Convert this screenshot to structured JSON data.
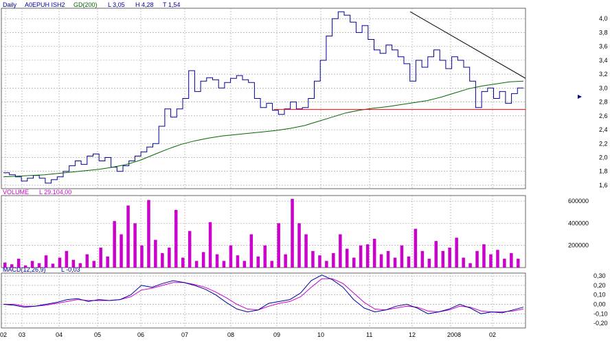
{
  "header": {
    "period": "Daily",
    "symbol": "A0EPUH ISH2",
    "indicator": "GD(200)",
    "low_label": "L 3,05",
    "high_label": "H 4,28",
    "t_label": "T 1,54"
  },
  "volume_panel": {
    "label": "VOLUME",
    "value_label": "L 29.104,00"
  },
  "macd_panel": {
    "label": "MACD(12,26,9)",
    "value_label": "L -0,03"
  },
  "colors": {
    "price": "#000099",
    "ma": "#006600",
    "trend": "#000000",
    "support": "#ff0000",
    "volume": "#cc00cc",
    "macd": "#000099",
    "signal": "#cc00cc",
    "label_blue": "#000099",
    "label_pink": "#cc00cc",
    "grid": "#999999"
  },
  "chart_data": [
    {
      "type": "line",
      "name": "price",
      "x_month_ticks": [
        "02",
        "03",
        "04",
        "05",
        "06",
        "07",
        "08",
        "09",
        "10",
        "11",
        "12",
        "2008",
        "02"
      ],
      "y_ticks": [
        "4,0",
        "3,8",
        "3,6",
        "3,4",
        "3,2",
        "3,0",
        "2,8",
        "2,6",
        "2,4",
        "2,2",
        "2,0",
        "1,8",
        "1,6"
      ],
      "ylim": [
        1.55,
        4.15
      ],
      "grid": true,
      "series": [
        {
          "values": [
            1.78,
            1.75,
            1.72,
            1.66,
            1.7,
            1.74,
            1.7,
            1.63,
            1.68,
            1.72,
            1.8,
            1.88,
            1.95,
            1.9,
            2.02,
            2.05,
            1.95,
            2.0,
            1.86,
            1.8,
            1.88,
            1.95,
            2.02,
            2.08,
            2.15,
            2.2,
            2.45,
            2.7,
            2.58,
            2.7,
            2.85,
            3.25,
            2.95,
            3.1,
            3.15,
            3.12,
            3.0,
            3.08,
            3.14,
            3.18,
            3.12,
            3.08,
            2.85,
            2.72,
            2.78,
            2.68,
            2.62,
            2.7,
            2.8,
            2.7,
            2.72,
            2.85,
            3.1,
            3.4,
            3.75,
            4.0,
            4.1,
            4.05,
            3.95,
            3.8,
            3.9,
            3.7,
            3.55,
            3.5,
            3.62,
            3.55,
            3.45,
            3.35,
            3.1,
            3.4,
            3.3,
            3.45,
            3.55,
            3.4,
            3.28,
            3.45,
            3.4,
            3.3,
            3.1,
            2.72,
            2.95,
            3.0,
            2.85,
            2.95,
            2.78,
            2.92,
            3.0
          ]
        },
        {
          "name": "GD(200)",
          "values": [
            1.72,
            1.73,
            1.74,
            1.75,
            1.77,
            1.79,
            1.81,
            1.83,
            1.86,
            1.9,
            1.96,
            2.04,
            2.12,
            2.19,
            2.24,
            2.28,
            2.31,
            2.33,
            2.35,
            2.37,
            2.39,
            2.42,
            2.46,
            2.52,
            2.58,
            2.64,
            2.68,
            2.71,
            2.73,
            2.76,
            2.79,
            2.82,
            2.87,
            2.93,
            2.99,
            3.03,
            3.06,
            3.09,
            3.1
          ]
        }
      ],
      "annotations": [
        {
          "kind": "trendline",
          "from": [
            0.78,
            4.1
          ],
          "to": [
            1.0,
            3.14
          ]
        },
        {
          "kind": "support",
          "y": 2.69,
          "from": 0.52,
          "to": 1.0
        }
      ]
    },
    {
      "type": "bar",
      "name": "VOLUME",
      "y_ticks": [
        "600000",
        "400000",
        "200000"
      ],
      "ylim": [
        0,
        650000
      ],
      "values": [
        45000,
        30000,
        80000,
        20000,
        60000,
        40000,
        110000,
        35000,
        90000,
        150000,
        70000,
        40000,
        120000,
        60000,
        180000,
        100000,
        420000,
        300000,
        560000,
        400000,
        200000,
        610000,
        250000,
        130000,
        180000,
        520000,
        90000,
        330000,
        60000,
        140000,
        410000,
        120000,
        60000,
        200000,
        110000,
        60000,
        300000,
        100000,
        200000,
        60000,
        400000,
        120000,
        620000,
        400000,
        300000,
        150000,
        110000,
        60000,
        130000,
        300000,
        170000,
        90000,
        200000,
        210000,
        260000,
        120000,
        150000,
        90000,
        200000,
        100000,
        350000,
        150000,
        80000,
        240000,
        150000,
        180000,
        270000,
        90000,
        40000,
        150000,
        210000,
        120000,
        160000,
        80000,
        130000,
        80000
      ]
    },
    {
      "type": "line",
      "name": "MACD(12,26,9)",
      "y_ticks": [
        "0,30",
        "0,20",
        "0,10",
        "0,00",
        "-0,10",
        "-0,20"
      ],
      "ylim": [
        -0.25,
        0.33
      ],
      "series": [
        {
          "name": "MACD",
          "values": [
            0.0,
            -0.01,
            -0.03,
            -0.02,
            0.0,
            0.02,
            0.05,
            0.06,
            0.03,
            0.05,
            0.04,
            0.05,
            0.1,
            0.2,
            0.18,
            0.22,
            0.25,
            0.23,
            0.2,
            0.16,
            0.1,
            0.02,
            -0.05,
            -0.08,
            -0.06,
            0.01,
            0.03,
            0.05,
            0.12,
            0.25,
            0.31,
            0.26,
            0.18,
            0.05,
            -0.04,
            -0.08,
            -0.06,
            -0.02,
            0.0,
            -0.04,
            -0.1,
            -0.08,
            -0.05,
            0.0,
            -0.04,
            -0.1,
            -0.08,
            -0.09,
            -0.06,
            -0.03
          ]
        },
        {
          "name": "Signal",
          "values": [
            0.0,
            0.0,
            -0.02,
            -0.02,
            -0.01,
            0.01,
            0.03,
            0.05,
            0.04,
            0.04,
            0.04,
            0.05,
            0.08,
            0.15,
            0.17,
            0.2,
            0.23,
            0.23,
            0.21,
            0.18,
            0.13,
            0.07,
            0.0,
            -0.05,
            -0.06,
            -0.02,
            0.01,
            0.03,
            0.08,
            0.18,
            0.27,
            0.27,
            0.22,
            0.12,
            0.02,
            -0.05,
            -0.06,
            -0.04,
            -0.02,
            -0.03,
            -0.07,
            -0.08,
            -0.06,
            -0.02,
            -0.03,
            -0.07,
            -0.08,
            -0.08,
            -0.07,
            -0.05
          ]
        }
      ]
    }
  ]
}
